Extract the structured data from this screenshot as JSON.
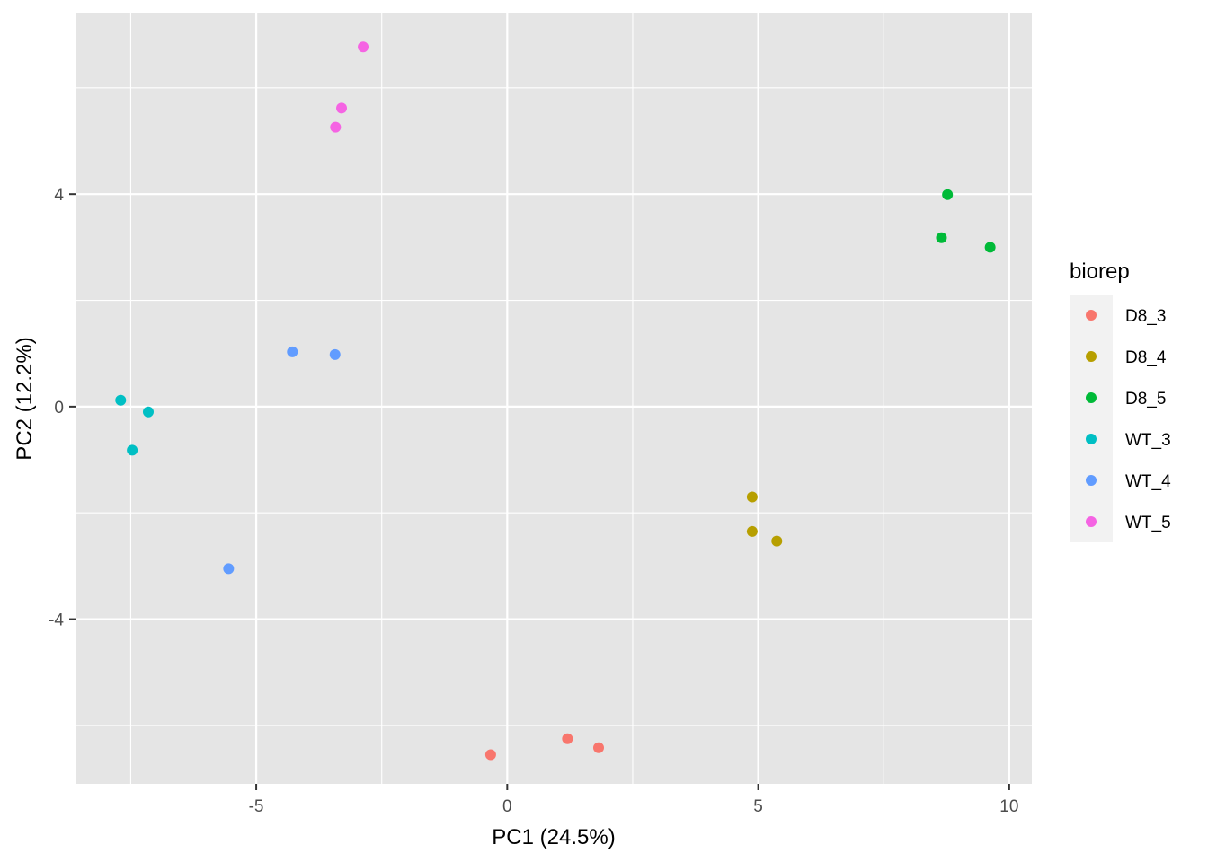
{
  "chart_data": {
    "type": "scatter",
    "title": "",
    "xlabel": "PC1 (24.5%)",
    "ylabel": "PC2 (12.2%)",
    "xlim": [
      -8.6,
      10.45
    ],
    "ylim": [
      -7.1,
      7.4
    ],
    "x_major_ticks": [
      -5,
      0,
      5,
      10
    ],
    "x_minor_ticks": [
      -7.5,
      -2.5,
      2.5,
      7.5
    ],
    "y_major_ticks": [
      -4,
      0,
      4
    ],
    "y_minor_ticks": [
      -6,
      -2,
      2,
      6
    ],
    "x_tick_labels": [
      "-5",
      "0",
      "5",
      "10"
    ],
    "y_tick_labels": [
      "-4",
      "0",
      "4"
    ],
    "grid": true,
    "panel_background": "#e5e5e5",
    "grid_color": "#ffffff",
    "legend": {
      "title": "biorep",
      "placement": "right"
    },
    "series": [
      {
        "name": "D8_3",
        "color": "#F8766D",
        "points": [
          [
            -0.33,
            -6.55
          ],
          [
            1.2,
            -6.25
          ],
          [
            1.82,
            -6.42
          ]
        ]
      },
      {
        "name": "D8_4",
        "color": "#B79F00",
        "points": [
          [
            4.88,
            -1.7
          ],
          [
            4.88,
            -2.35
          ],
          [
            5.37,
            -2.53
          ]
        ]
      },
      {
        "name": "D8_5",
        "color": "#00BA38",
        "points": [
          [
            8.77,
            3.99
          ],
          [
            8.65,
            3.18
          ],
          [
            9.62,
            3.0
          ]
        ]
      },
      {
        "name": "WT_3",
        "color": "#00BFC4",
        "points": [
          [
            -7.7,
            0.12
          ],
          [
            -7.15,
            -0.1
          ],
          [
            -7.47,
            -0.82
          ]
        ]
      },
      {
        "name": "WT_4",
        "color": "#619CFF",
        "points": [
          [
            -4.28,
            1.03
          ],
          [
            -3.43,
            0.98
          ],
          [
            -5.55,
            -3.05
          ]
        ]
      },
      {
        "name": "WT_5",
        "color": "#F564E3",
        "points": [
          [
            -2.87,
            6.77
          ],
          [
            -3.3,
            5.62
          ],
          [
            -3.42,
            5.26
          ]
        ]
      }
    ]
  }
}
